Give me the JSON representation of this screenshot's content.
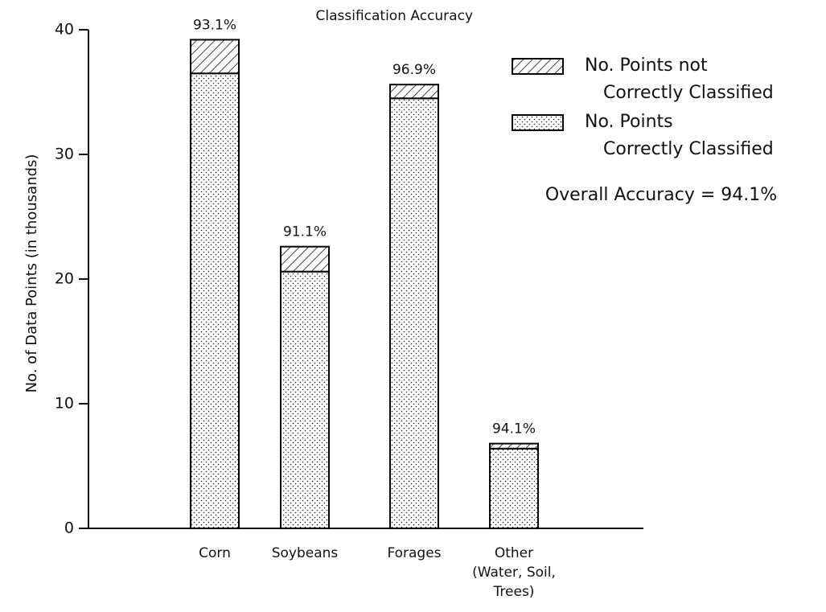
{
  "chart_data": {
    "type": "stacked_bar",
    "y_label": "No. of Data Points (in thousands)",
    "categories": [
      "Corn",
      "Soybeans",
      "Forages",
      "Other\n(Water, Soil,\nTrees)"
    ],
    "series": [
      {
        "name": "No. Points\nCorrectly Classified",
        "color": "#000000",
        "pattern": "dots",
        "values": [
          36.5,
          20.6,
          34.5,
          6.4
        ]
      },
      {
        "name": "No. Points not\nCorrectly Classified",
        "color": "#000000",
        "pattern": "hatch",
        "values": [
          2.7,
          2.0,
          1.1,
          0.4
        ]
      }
    ],
    "accuracy_labels": [
      "93.1%",
      "91.1%",
      "96.9%",
      "94.1%"
    ],
    "accuracy_title": "Classification Accuracy",
    "note": "Overall Accuracy = 94.1%",
    "ylim": [
      0,
      40
    ],
    "yticks": [
      0,
      10,
      20,
      30,
      40
    ],
    "grid": false
  }
}
